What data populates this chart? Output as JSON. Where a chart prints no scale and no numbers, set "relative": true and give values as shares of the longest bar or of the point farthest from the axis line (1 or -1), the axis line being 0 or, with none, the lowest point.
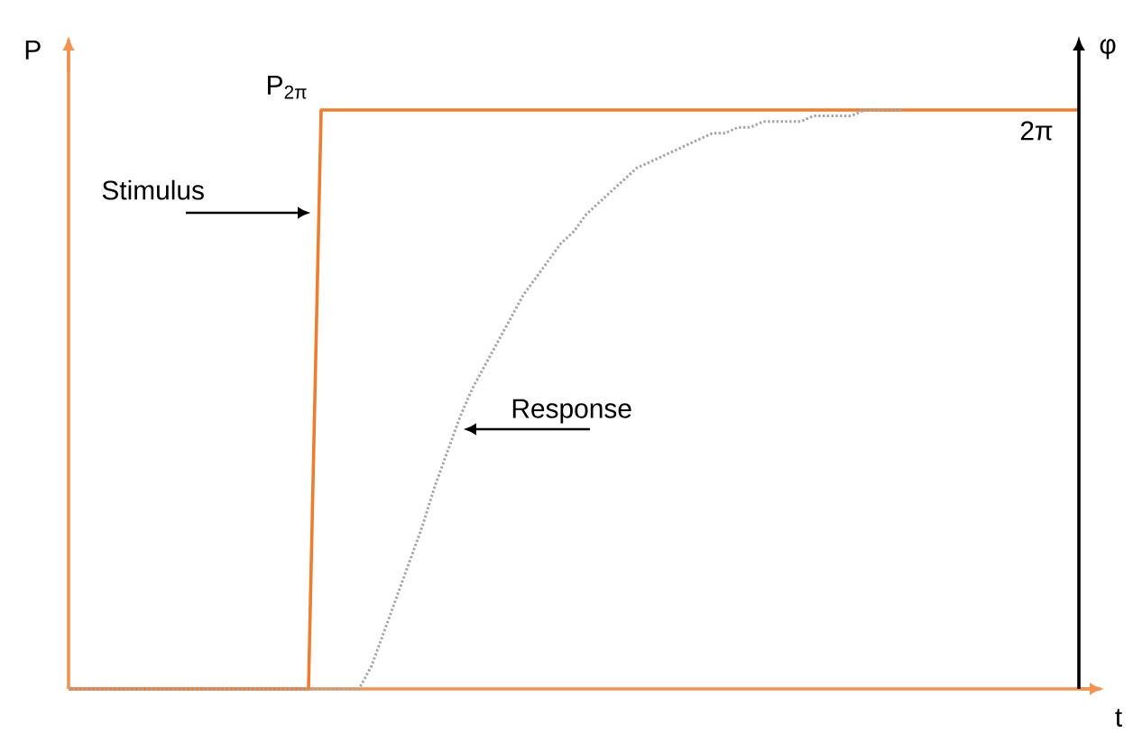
{
  "chart_data": {
    "type": "line",
    "relative": true,
    "xlabel": "t",
    "ylabel": "P",
    "y2label": "φ",
    "categories": [
      null,
      null,
      null,
      null,
      null,
      null,
      null,
      null,
      null,
      null,
      null,
      null,
      null,
      null,
      null,
      null,
      null,
      null,
      null,
      null,
      null,
      null,
      null,
      null,
      null,
      null,
      null,
      null,
      null,
      null,
      null,
      null,
      null,
      null,
      null,
      null,
      null,
      null,
      null,
      null,
      null,
      null,
      null,
      null,
      null,
      null,
      null,
      null,
      null,
      null,
      null,
      null,
      null,
      null,
      null,
      null,
      null,
      null,
      null,
      null,
      null,
      null,
      null,
      null,
      null,
      null,
      null,
      null,
      null,
      null,
      null,
      null,
      null,
      null,
      null,
      null,
      null,
      null,
      null,
      null,
      null
    ],
    "series": [
      {
        "color": "#ed7d31",
        "line_style": "solid",
        "values": [
          0,
          0,
          0,
          0,
          0,
          0,
          0,
          0,
          0,
          0,
          0,
          0,
          0,
          0,
          0,
          0,
          0,
          0,
          0,
          0,
          1,
          1,
          1,
          1,
          1,
          1,
          1,
          1,
          1,
          1,
          1,
          1,
          1,
          1,
          1,
          1,
          1,
          1,
          1,
          1,
          1,
          1,
          1,
          1,
          1,
          1,
          1,
          1,
          1,
          1,
          1,
          1,
          1,
          1,
          1,
          1,
          1,
          1,
          1,
          1,
          1,
          1,
          1,
          1,
          1,
          1,
          1,
          1,
          1,
          1,
          1,
          1,
          1,
          1,
          1,
          1,
          1,
          1,
          1,
          1,
          1
        ]
      },
      {
        "color": "#a5a5a5",
        "line_style": "dotted",
        "values": [
          0,
          0,
          0,
          0,
          0,
          0,
          0,
          0,
          0,
          0,
          0,
          0,
          0,
          0,
          0,
          0,
          0,
          0,
          0,
          0,
          0,
          0,
          0,
          0,
          0.04,
          0.1,
          0.16,
          0.22,
          0.28,
          0.35,
          0.41,
          0.47,
          0.52,
          0.56,
          0.6,
          0.64,
          0.68,
          0.71,
          0.74,
          0.77,
          0.79,
          0.82,
          0.84,
          0.86,
          0.88,
          0.9,
          0.91,
          0.92,
          0.93,
          0.94,
          0.95,
          0.96,
          0.96,
          0.97,
          0.97,
          0.98,
          0.98,
          0.98,
          0.98,
          0.99,
          0.99,
          0.99,
          0.99,
          1,
          1,
          1,
          1,
          null,
          null,
          null,
          null,
          null,
          null,
          null,
          null,
          null,
          null,
          null,
          null,
          null,
          null
        ]
      }
    ],
    "annotations": [
      "P$_{2π}$",
      "2π",
      "Stimulus",
      "Response"
    ]
  }
}
